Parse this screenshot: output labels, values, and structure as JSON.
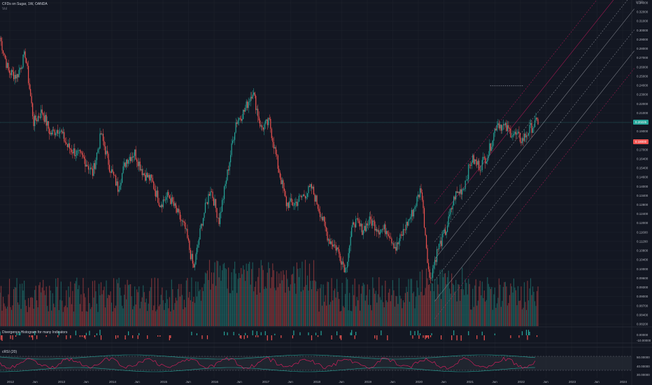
{
  "header": {
    "title": "CFDs on Sugar, 1W, OANDA",
    "vol_label": "Vol"
  },
  "indicators": {
    "divergence_label": "Divergence Histogram for many Indicators",
    "rsi_label": "cRSI (20)"
  },
  "price_badges": {
    "current": "0.20225",
    "level": "0.18000"
  },
  "price_axis": [
    "0.34000",
    "0.32000",
    "0.31000",
    "0.30000",
    "0.29000",
    "0.28000",
    "0.27000",
    "0.26000",
    "0.25000",
    "0.24000",
    "0.23000",
    "0.22000",
    "0.21000",
    "0.20000",
    "0.19000",
    "0.18000",
    "0.17000",
    "0.16400",
    "0.15400",
    "0.14600",
    "0.14000",
    "0.13400",
    "0.12800",
    "0.12400",
    "0.12000",
    "0.11600",
    "0.11200",
    "0.10800",
    "0.10400",
    "0.10000",
    "0.09600",
    "0.09300",
    "0.09000",
    "0.08700",
    "0.08400",
    "0.08200"
  ],
  "axis_top_label": "USD",
  "div_axis": [
    "0.00000",
    "-10.00000"
  ],
  "rsi_axis": [
    "50.00000",
    "40.00000",
    "30.00000"
  ],
  "time_axis": [
    "2012",
    "Jun",
    "2013",
    "Jun",
    "2014",
    "Jun",
    "2015",
    "Jun",
    "2016",
    "Jun",
    "2017",
    "Jun",
    "2018",
    "Jun",
    "2019",
    "Jun",
    "2020",
    "Jun",
    "2021",
    "Jun",
    "2022",
    "Jun",
    "2023",
    "Jun",
    "2024"
  ],
  "colors": {
    "up": "#26a69a",
    "down": "#ef5350",
    "bg": "#131722",
    "grid": "#1e222d",
    "channel": "#9598a1",
    "channel_red": "#c2185b",
    "rsi_line": "#e91e63",
    "rsi_band": "#26a69a"
  },
  "chart_data": {
    "type": "candlestick",
    "symbol": "CFDs on Sugar",
    "interval": "1W",
    "broker": "OANDA",
    "x_range": [
      "2011-10",
      "2024-03"
    ],
    "y_range": [
      0.082,
      0.34
    ],
    "y_scale": "log",
    "close_series": [
      {
        "date": "2011-10",
        "close": 0.29
      },
      {
        "date": "2011-12",
        "close": 0.25
      },
      {
        "date": "2012-02",
        "close": 0.245
      },
      {
        "date": "2012-04",
        "close": 0.27
      },
      {
        "date": "2012-06",
        "close": 0.2
      },
      {
        "date": "2012-08",
        "close": 0.21
      },
      {
        "date": "2012-10",
        "close": 0.19
      },
      {
        "date": "2012-12",
        "close": 0.195
      },
      {
        "date": "2013-02",
        "close": 0.18
      },
      {
        "date": "2013-04",
        "close": 0.175
      },
      {
        "date": "2013-06",
        "close": 0.17
      },
      {
        "date": "2013-08",
        "close": 0.16
      },
      {
        "date": "2013-10",
        "close": 0.19
      },
      {
        "date": "2013-12",
        "close": 0.165
      },
      {
        "date": "2014-02",
        "close": 0.15
      },
      {
        "date": "2014-04",
        "close": 0.17
      },
      {
        "date": "2014-06",
        "close": 0.175
      },
      {
        "date": "2014-08",
        "close": 0.16
      },
      {
        "date": "2014-10",
        "close": 0.155
      },
      {
        "date": "2014-12",
        "close": 0.14
      },
      {
        "date": "2015-02",
        "close": 0.145
      },
      {
        "date": "2015-04",
        "close": 0.135
      },
      {
        "date": "2015-06",
        "close": 0.125
      },
      {
        "date": "2015-08",
        "close": 0.105
      },
      {
        "date": "2015-10",
        "close": 0.13
      },
      {
        "date": "2015-12",
        "close": 0.15
      },
      {
        "date": "2016-02",
        "close": 0.13
      },
      {
        "date": "2016-04",
        "close": 0.16
      },
      {
        "date": "2016-06",
        "close": 0.2
      },
      {
        "date": "2016-08",
        "close": 0.21
      },
      {
        "date": "2016-10",
        "close": 0.23
      },
      {
        "date": "2016-12",
        "close": 0.195
      },
      {
        "date": "2017-02",
        "close": 0.2
      },
      {
        "date": "2017-04",
        "close": 0.165
      },
      {
        "date": "2017-06",
        "close": 0.14
      },
      {
        "date": "2017-08",
        "close": 0.14
      },
      {
        "date": "2017-10",
        "close": 0.145
      },
      {
        "date": "2017-12",
        "close": 0.15
      },
      {
        "date": "2018-02",
        "close": 0.135
      },
      {
        "date": "2018-04",
        "close": 0.12
      },
      {
        "date": "2018-06",
        "close": 0.115
      },
      {
        "date": "2018-08",
        "close": 0.105
      },
      {
        "date": "2018-10",
        "close": 0.13
      },
      {
        "date": "2018-12",
        "close": 0.125
      },
      {
        "date": "2019-02",
        "close": 0.13
      },
      {
        "date": "2019-04",
        "close": 0.125
      },
      {
        "date": "2019-06",
        "close": 0.125
      },
      {
        "date": "2019-08",
        "close": 0.115
      },
      {
        "date": "2019-10",
        "close": 0.125
      },
      {
        "date": "2019-12",
        "close": 0.135
      },
      {
        "date": "2020-02",
        "close": 0.15
      },
      {
        "date": "2020-04",
        "close": 0.1
      },
      {
        "date": "2020-06",
        "close": 0.115
      },
      {
        "date": "2020-08",
        "close": 0.125
      },
      {
        "date": "2020-10",
        "close": 0.145
      },
      {
        "date": "2020-12",
        "close": 0.15
      },
      {
        "date": "2021-02",
        "close": 0.17
      },
      {
        "date": "2021-04",
        "close": 0.165
      },
      {
        "date": "2021-06",
        "close": 0.175
      },
      {
        "date": "2021-08",
        "close": 0.2
      },
      {
        "date": "2021-10",
        "close": 0.195
      },
      {
        "date": "2021-12",
        "close": 0.19
      },
      {
        "date": "2022-02",
        "close": 0.185
      },
      {
        "date": "2022-04",
        "close": 0.195
      },
      {
        "date": "2022-06",
        "close": 0.202
      }
    ]
  }
}
